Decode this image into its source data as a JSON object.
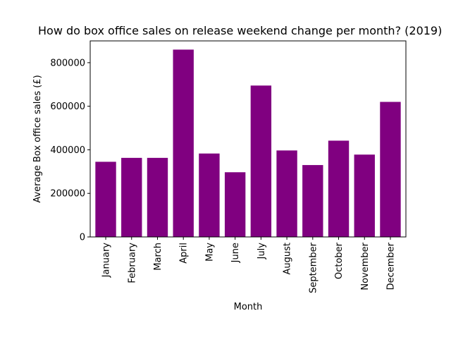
{
  "chart_data": {
    "type": "bar",
    "title": "How do box office sales on release weekend change per month? (2019)",
    "xlabel": "Month",
    "ylabel": "Average Box office sales (£)",
    "categories": [
      "January",
      "February",
      "March",
      "April",
      "May",
      "June",
      "July",
      "August",
      "September",
      "October",
      "November",
      "December"
    ],
    "values": [
      345000,
      363000,
      363000,
      860000,
      383000,
      297000,
      695000,
      397000,
      330000,
      442000,
      378000,
      620000
    ],
    "ylim": [
      0,
      900000
    ],
    "yticks": [
      0,
      200000,
      400000,
      600000,
      800000
    ],
    "bar_color": "#800080",
    "grid": false,
    "legend": false
  }
}
